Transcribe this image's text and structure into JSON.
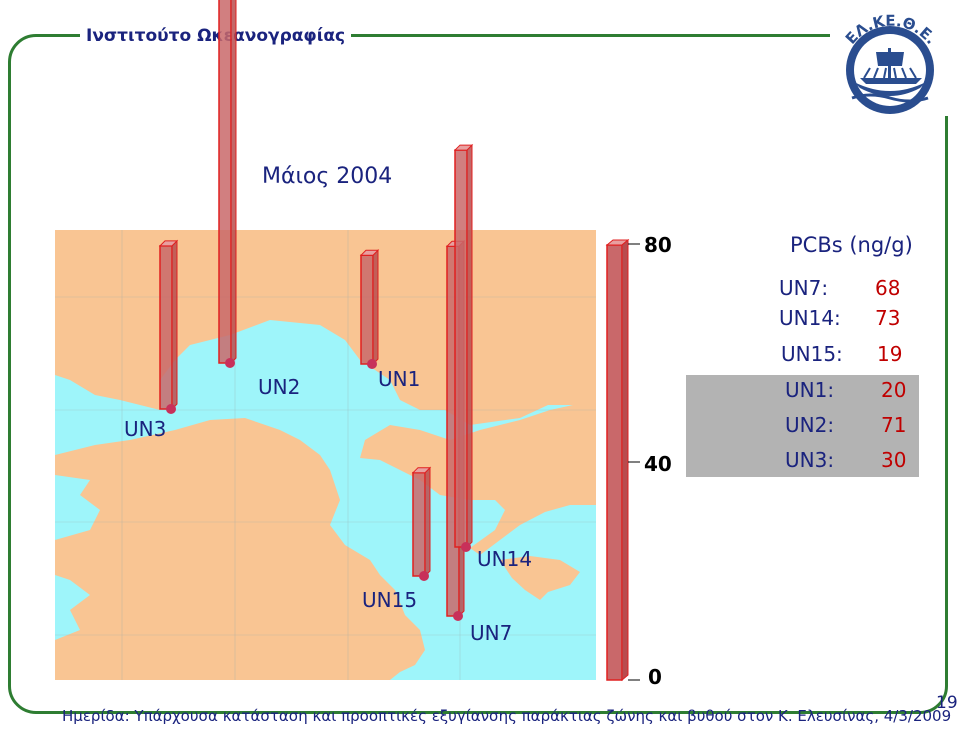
{
  "header": {
    "institute": "Ινστιτούτο Ωκεανογραφίας",
    "logo_text": "ΕΛ.ΚΕ.Θ.Ε."
  },
  "subtitle": "Μάιος 2004",
  "legend": {
    "title": "PCBs (ng/g)",
    "rows": [
      {
        "label": "UN7:",
        "value": "68"
      },
      {
        "label": "UN14:",
        "value": "73"
      },
      {
        "label": "UN15:",
        "value": "19"
      },
      {
        "label": "UN1:",
        "value": "20"
      },
      {
        "label": "UN2:",
        "value": "71"
      },
      {
        "label": "UN3:",
        "value": "30"
      }
    ]
  },
  "footer": "Ημερίδα: Υπάρχουσα κατάσταση και προοπτικές εξυγίανσης παράκτιας ζώνης και βυθού στον Κ. Ελευσίνας, 4/3/2009",
  "page_number": "19",
  "colors": {
    "sea": "#9ef5fa",
    "land": "#f9c593",
    "bar_fill": "#c9686a",
    "bar_edge": "#e02020",
    "station_dot": "#c8305a",
    "title_blue": "#1a237e"
  },
  "chart_data": {
    "type": "bar",
    "title": "Μάιος 2004",
    "unit": "PCBs (ng/g)",
    "scale_ticks": [
      "80",
      "40",
      "0"
    ],
    "ylim": [
      0,
      80
    ],
    "categories": [
      "UN3",
      "UN2",
      "UN1",
      "UN15",
      "UN7",
      "UN14"
    ],
    "values": [
      30,
      71,
      20,
      19,
      68,
      73
    ]
  }
}
